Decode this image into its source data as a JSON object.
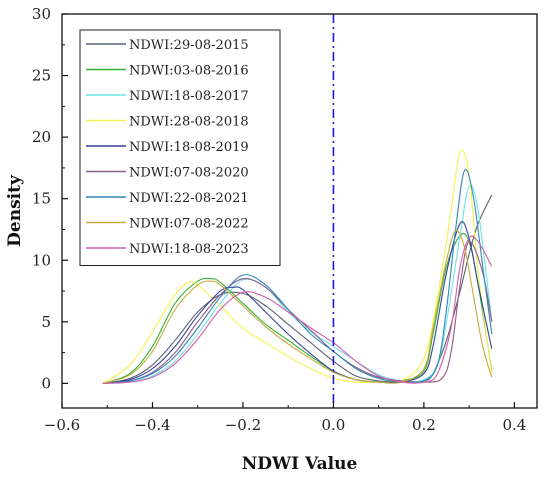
{
  "chart_data": {
    "type": "line",
    "xlabel": "NDWI Value",
    "ylabel": "Density",
    "xlim": [
      -0.6,
      0.45
    ],
    "ylim": [
      -2,
      30
    ],
    "xticks": [
      "−0.6",
      "−0.4",
      "−0.2",
      "0.0",
      "0.2",
      "0.4"
    ],
    "xtick_values": [
      -0.6,
      -0.4,
      -0.2,
      0.0,
      0.2,
      0.4
    ],
    "yticks": [
      "0",
      "5",
      "10",
      "15",
      "20",
      "25",
      "30"
    ],
    "ytick_values": [
      0,
      5,
      10,
      15,
      20,
      25,
      30
    ],
    "grid": false,
    "legend_position": "top-left",
    "reference_line": {
      "x": 0.0,
      "style": "dash-dot",
      "color": "#1a1adb"
    },
    "series": [
      {
        "name": "NDWI:29-08-2015",
        "color": "#5a6172",
        "x": [
          -0.51,
          -0.45,
          -0.4,
          -0.35,
          -0.3,
          -0.25,
          -0.2,
          -0.15,
          -0.1,
          -0.05,
          0,
          0.05,
          0.1,
          0.15,
          0.2,
          0.22,
          0.25,
          0.28,
          0.3,
          0.32,
          0.35
        ],
        "y": [
          0,
          0.4,
          1.5,
          3.5,
          5.8,
          7.2,
          7.3,
          6.3,
          4.8,
          3.3,
          1.8,
          0.6,
          0.2,
          0.1,
          0.2,
          0.8,
          3.5,
          7.5,
          10.5,
          13,
          15.3
        ]
      },
      {
        "name": "NDWI:03-08-2016",
        "color": "#33b233",
        "x": [
          -0.51,
          -0.45,
          -0.4,
          -0.35,
          -0.3,
          -0.27,
          -0.25,
          -0.2,
          -0.15,
          -0.1,
          -0.05,
          0,
          0.05,
          0.1,
          0.15,
          0.2,
          0.22,
          0.25,
          0.28,
          0.3,
          0.32,
          0.35
        ],
        "y": [
          0,
          0.8,
          3,
          6.5,
          8.3,
          8.5,
          8.2,
          6.5,
          4.8,
          3.5,
          2.2,
          1,
          0.3,
          0.1,
          0.2,
          1,
          4,
          9.5,
          12,
          11.5,
          8,
          1
        ]
      },
      {
        "name": "NDWI:18-08-2017",
        "color": "#6fe2ec",
        "x": [
          -0.51,
          -0.45,
          -0.4,
          -0.35,
          -0.3,
          -0.25,
          -0.2,
          -0.15,
          -0.1,
          -0.05,
          0,
          0.05,
          0.1,
          0.15,
          0.2,
          0.23,
          0.25,
          0.28,
          0.3,
          0.32,
          0.35
        ],
        "y": [
          0,
          0.1,
          0.6,
          1.8,
          4,
          6.5,
          8.4,
          7.8,
          5.8,
          4.2,
          3,
          1.8,
          0.7,
          0.2,
          0.3,
          1.5,
          5,
          12,
          16,
          14,
          5
        ]
      },
      {
        "name": "NDWI:28-08-2018",
        "color": "#f4f24e",
        "x": [
          -0.51,
          -0.45,
          -0.4,
          -0.35,
          -0.32,
          -0.3,
          -0.25,
          -0.2,
          -0.15,
          -0.1,
          -0.05,
          0,
          0.05,
          0.1,
          0.15,
          0.2,
          0.23,
          0.26,
          0.28,
          0.3,
          0.32,
          0.35
        ],
        "y": [
          0,
          1.5,
          4.2,
          7.2,
          8.2,
          8,
          6.3,
          4.5,
          3.3,
          2.2,
          1.2,
          0.4,
          0.1,
          0.1,
          0.2,
          2,
          7,
          14,
          18.8,
          17,
          9,
          0.8
        ]
      },
      {
        "name": "NDWI:18-08-2019",
        "color": "#34439a",
        "x": [
          -0.51,
          -0.45,
          -0.4,
          -0.35,
          -0.3,
          -0.25,
          -0.22,
          -0.2,
          -0.15,
          -0.1,
          -0.05,
          0,
          0.05,
          0.1,
          0.15,
          0.2,
          0.22,
          0.25,
          0.28,
          0.3,
          0.32,
          0.35
        ],
        "y": [
          0,
          0.3,
          1.2,
          3,
          5.5,
          7.5,
          7.8,
          7.6,
          5.8,
          4,
          2.4,
          1,
          0.3,
          0.1,
          0.1,
          0.8,
          3,
          9,
          13,
          11.8,
          8,
          2.8
        ]
      },
      {
        "name": "NDWI:07-08-2020",
        "color": "#8e5a86",
        "x": [
          -0.51,
          -0.45,
          -0.4,
          -0.35,
          -0.3,
          -0.25,
          -0.2,
          -0.15,
          -0.1,
          -0.05,
          0,
          0.05,
          0.1,
          0.15,
          0.2,
          0.24,
          0.26,
          0.28,
          0.3,
          0.33,
          0.35
        ],
        "y": [
          0,
          0.2,
          0.9,
          2.5,
          5,
          7.2,
          8.5,
          7.8,
          6,
          4.3,
          2.6,
          1.3,
          0.5,
          0.2,
          0.1,
          0.4,
          2.5,
          8,
          11.5,
          9,
          5
        ]
      },
      {
        "name": "NDWI:22-08-2021",
        "color": "#2f86b7",
        "x": [
          -0.51,
          -0.45,
          -0.4,
          -0.35,
          -0.3,
          -0.25,
          -0.2,
          -0.15,
          -0.1,
          -0.05,
          0,
          0.05,
          0.1,
          0.15,
          0.2,
          0.23,
          0.25,
          0.27,
          0.29,
          0.31,
          0.33,
          0.35
        ],
        "y": [
          0,
          0.2,
          0.8,
          2.2,
          4.5,
          7,
          8.8,
          8,
          6,
          4,
          2.6,
          1.2,
          0.4,
          0.1,
          0.2,
          1.5,
          6,
          12.5,
          17.3,
          15,
          9.5,
          4
        ]
      },
      {
        "name": "NDWI:07-08-2022",
        "color": "#c9aa42",
        "x": [
          -0.51,
          -0.45,
          -0.4,
          -0.35,
          -0.3,
          -0.27,
          -0.25,
          -0.2,
          -0.15,
          -0.1,
          -0.05,
          0,
          0.05,
          0.1,
          0.15,
          0.2,
          0.22,
          0.25,
          0.27,
          0.29,
          0.31,
          0.33,
          0.35
        ],
        "y": [
          0,
          0.7,
          2.6,
          6,
          8,
          8.3,
          8,
          6.3,
          4.6,
          3.2,
          2,
          0.9,
          0.3,
          0.1,
          0.1,
          1.2,
          4.5,
          10,
          12.4,
          11,
          7,
          3,
          0.5
        ]
      },
      {
        "name": "NDWI:18-08-2023",
        "color": "#d45fa9",
        "x": [
          -0.51,
          -0.45,
          -0.4,
          -0.35,
          -0.3,
          -0.25,
          -0.2,
          -0.15,
          -0.1,
          -0.05,
          0,
          0.05,
          0.1,
          0.15,
          0.2,
          0.23,
          0.26,
          0.28,
          0.3,
          0.32,
          0.35
        ],
        "y": [
          0,
          0.1,
          0.5,
          1.6,
          3.6,
          6,
          7.4,
          7,
          5.8,
          4.5,
          3.3,
          1.8,
          0.6,
          0.1,
          0.1,
          0.8,
          4.5,
          9.5,
          11.8,
          11.5,
          9.5
        ]
      }
    ]
  }
}
